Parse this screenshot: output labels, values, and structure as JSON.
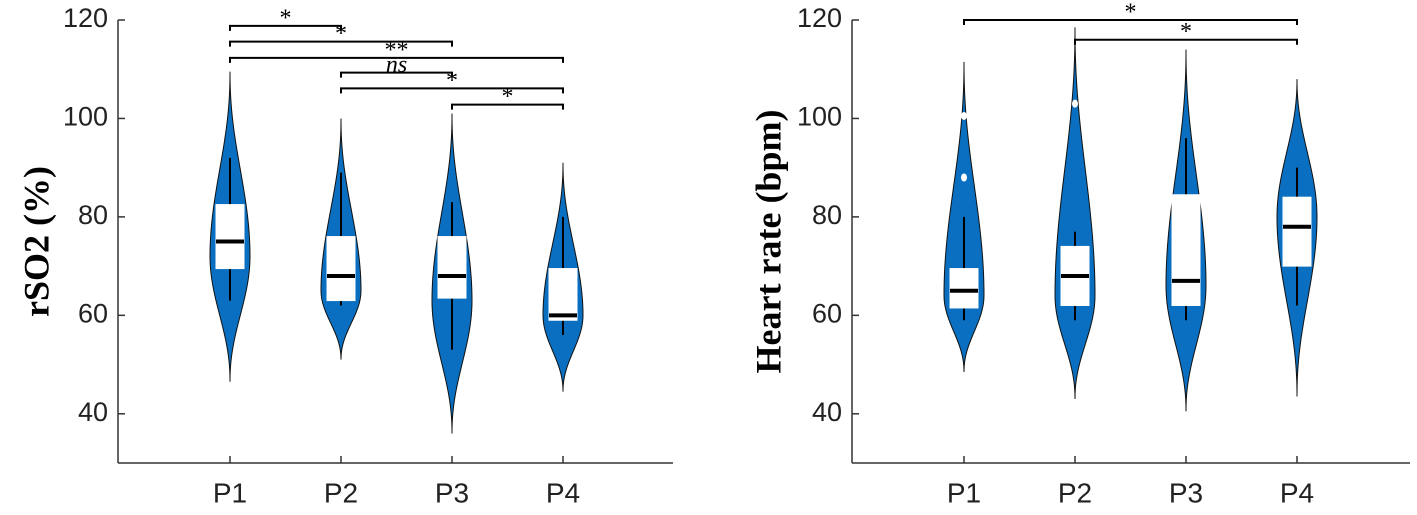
{
  "chart_data": [
    {
      "type": "violin",
      "ylabel": "rSO2 (%)",
      "color": "#0a6fc0",
      "categories": [
        "P1",
        "P2",
        "P3",
        "P4"
      ],
      "ylim": [
        30,
        120
      ],
      "yticks": [
        40,
        60,
        80,
        100,
        120
      ],
      "violins": [
        {
          "min": 46.5,
          "mode": 72,
          "max": 109.5,
          "whisker_low": 63,
          "q1": 69.5,
          "median": 75,
          "q3": 82.5,
          "whisker_high": 92,
          "outliers": []
        },
        {
          "min": 51,
          "mode": 65,
          "max": 100,
          "whisker_low": 62,
          "q1": 63,
          "median": 68,
          "q3": 76,
          "whisker_high": 89,
          "outliers": []
        },
        {
          "min": 36,
          "mode": 63,
          "max": 101,
          "whisker_low": 53,
          "q1": 63.5,
          "median": 68,
          "q3": 76,
          "whisker_high": 83,
          "outliers": []
        },
        {
          "min": 44.5,
          "mode": 60,
          "max": 91,
          "whisker_low": 56,
          "q1": 59,
          "median": 60,
          "q3": 69.5,
          "whisker_high": 80,
          "outliers": []
        }
      ],
      "annotations": [
        {
          "from": "P1",
          "to": "P2",
          "y": 118.8,
          "label": "*"
        },
        {
          "from": "P1",
          "to": "P3",
          "y": 115.6,
          "label": "*"
        },
        {
          "from": "P1",
          "to": "P4",
          "y": 112.3,
          "label": "**"
        },
        {
          "from": "P2",
          "to": "P3",
          "y": 109.3,
          "label": "ns"
        },
        {
          "from": "P2",
          "to": "P4",
          "y": 106.1,
          "label": "*"
        },
        {
          "from": "P3",
          "to": "P4",
          "y": 102.8,
          "label": "*"
        }
      ]
    },
    {
      "type": "violin",
      "ylabel": "Heart rate (bpm)",
      "color": "#0a6fc0",
      "categories": [
        "P1",
        "P2",
        "P3",
        "P4"
      ],
      "ylim": [
        30,
        120
      ],
      "yticks": [
        40,
        60,
        80,
        100,
        120
      ],
      "violins": [
        {
          "min": 48.5,
          "mode": 64,
          "max": 111.5,
          "whisker_low": 59,
          "q1": 61.5,
          "median": 65,
          "q3": 69.5,
          "whisker_high": 80,
          "outliers": [
            88,
            100.5
          ]
        },
        {
          "min": 43,
          "mode": 64,
          "max": 118.5,
          "whisker_low": 59,
          "q1": 62,
          "median": 68,
          "q3": 74,
          "whisker_high": 77,
          "outliers": [
            103
          ]
        },
        {
          "min": 40.5,
          "mode": 66,
          "max": 114,
          "whisker_low": 59,
          "q1": 62,
          "median": 67,
          "q3": 84.5,
          "whisker_high": 96,
          "outliers": []
        },
        {
          "min": 43.5,
          "mode": 80,
          "max": 108,
          "whisker_low": 62,
          "q1": 70,
          "median": 78,
          "q3": 84,
          "whisker_high": 90,
          "outliers": []
        }
      ],
      "annotations": [
        {
          "from": "P1",
          "to": "P4",
          "y": 120,
          "label": "*"
        },
        {
          "from": "P2",
          "to": "P4",
          "y": 116,
          "label": "*"
        }
      ]
    }
  ]
}
